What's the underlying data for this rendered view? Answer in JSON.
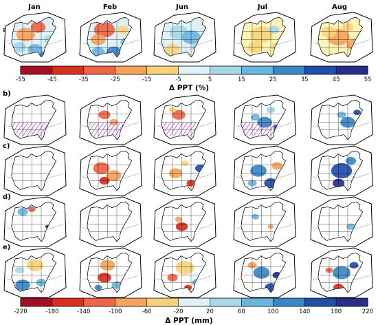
{
  "months": [
    "Jan",
    "Feb",
    "Jun",
    "Jul",
    "Aug"
  ],
  "rows": [
    "a)",
    "b)",
    "c)",
    "d)",
    "e)"
  ],
  "colorbar_pct": {
    "title": "Δ PPT (%)",
    "ticks": [
      "-55",
      "-45",
      "-35",
      "-25",
      "-15",
      "-5",
      "5",
      "15",
      "25",
      "35",
      "45",
      "55"
    ]
  },
  "colorbar_mm": {
    "title": "Δ PPT (mm)",
    "ticks": [
      "-220",
      "-180",
      "-140",
      "-100",
      "-60",
      "-20",
      "20",
      "60",
      "100",
      "140",
      "180",
      "220"
    ]
  },
  "palette": [
    "#a50f23",
    "#d7301f",
    "#ef6548",
    "#f5a25c",
    "#f8d27a",
    "#fdf4b7",
    "#dff1f7",
    "#a6d8ea",
    "#6cb6dd",
    "#3a86c6",
    "#214ea8",
    "#282c8c"
  ],
  "hatch_color": "#c040d8",
  "panels": [
    [
      {
        "land": 6,
        "blobs": [
          [
            0.35,
            0.45,
            0.25,
            3
          ],
          [
            0.55,
            0.3,
            0.2,
            2
          ],
          [
            0.25,
            0.7,
            0.18,
            7
          ],
          [
            0.5,
            0.75,
            0.2,
            8
          ],
          [
            0.75,
            0.55,
            0.18,
            7
          ],
          [
            0.65,
            0.85,
            0.12,
            9
          ]
        ],
        "hatch": false
      },
      {
        "land": 6,
        "blobs": [
          [
            0.4,
            0.35,
            0.28,
            2
          ],
          [
            0.3,
            0.55,
            0.2,
            3
          ],
          [
            0.3,
            0.8,
            0.18,
            8
          ],
          [
            0.55,
            0.8,
            0.2,
            9
          ],
          [
            0.75,
            0.6,
            0.15,
            8
          ],
          [
            0.7,
            0.35,
            0.15,
            4
          ]
        ],
        "hatch": false
      },
      {
        "land": 6,
        "blobs": [
          [
            0.4,
            0.4,
            0.25,
            7
          ],
          [
            0.6,
            0.5,
            0.25,
            8
          ],
          [
            0.3,
            0.75,
            0.2,
            4
          ],
          [
            0.7,
            0.7,
            0.15,
            7
          ]
        ],
        "hatch": false
      },
      {
        "land": 5,
        "blobs": [
          [
            0.45,
            0.45,
            0.3,
            4
          ],
          [
            0.35,
            0.7,
            0.2,
            4
          ],
          [
            0.65,
            0.35,
            0.15,
            7
          ],
          [
            0.7,
            0.7,
            0.15,
            4
          ]
        ],
        "hatch": false
      },
      {
        "land": 5,
        "blobs": [
          [
            0.45,
            0.5,
            0.3,
            3
          ],
          [
            0.3,
            0.4,
            0.2,
            4
          ],
          [
            0.7,
            0.65,
            0.2,
            3
          ],
          [
            0.6,
            0.3,
            0.15,
            4
          ]
        ],
        "hatch": false
      }
    ],
    [
      {
        "land": -1,
        "blobs": [],
        "hatch": true
      },
      {
        "land": -1,
        "blobs": [
          [
            0.4,
            0.4,
            0.16,
            2
          ],
          [
            0.55,
            0.55,
            0.12,
            3
          ]
        ],
        "hatch": true
      },
      {
        "land": -1,
        "blobs": [
          [
            0.4,
            0.4,
            0.18,
            2
          ],
          [
            0.3,
            0.3,
            0.1,
            4
          ]
        ],
        "hatch": true
      },
      {
        "land": -1,
        "blobs": [
          [
            0.5,
            0.55,
            0.2,
            9
          ],
          [
            0.35,
            0.45,
            0.12,
            8
          ],
          [
            0.6,
            0.3,
            0.12,
            7
          ],
          [
            0.7,
            0.65,
            0.1,
            10
          ]
        ],
        "hatch": true
      },
      {
        "land": -1,
        "blobs": [
          [
            0.6,
            0.55,
            0.2,
            9
          ],
          [
            0.5,
            0.4,
            0.12,
            8
          ],
          [
            0.75,
            0.35,
            0.1,
            10
          ]
        ],
        "hatch": false
      }
    ],
    [
      {
        "land": -1,
        "blobs": [],
        "hatch": false
      },
      {
        "land": -1,
        "blobs": [
          [
            0.35,
            0.45,
            0.22,
            2
          ],
          [
            0.55,
            0.6,
            0.2,
            3
          ],
          [
            0.4,
            0.7,
            0.14,
            1
          ]
        ],
        "hatch": false
      },
      {
        "land": -1,
        "blobs": [
          [
            0.35,
            0.55,
            0.18,
            3
          ],
          [
            0.75,
            0.45,
            0.14,
            10
          ],
          [
            0.6,
            0.75,
            0.12,
            1
          ],
          [
            0.5,
            0.35,
            0.1,
            4
          ]
        ],
        "hatch": false
      },
      {
        "land": -1,
        "blobs": [
          [
            0.4,
            0.5,
            0.22,
            9
          ],
          [
            0.6,
            0.75,
            0.18,
            10
          ],
          [
            0.7,
            0.4,
            0.14,
            3
          ],
          [
            0.3,
            0.75,
            0.12,
            8
          ]
        ],
        "hatch": false
      },
      {
        "land": -1,
        "blobs": [
          [
            0.5,
            0.5,
            0.28,
            10
          ],
          [
            0.65,
            0.3,
            0.14,
            9
          ],
          [
            0.45,
            0.75,
            0.16,
            11
          ],
          [
            0.75,
            0.65,
            0.12,
            9
          ]
        ],
        "hatch": false
      }
    ],
    [
      {
        "land": -1,
        "blobs": [
          [
            0.3,
            0.3,
            0.14,
            8
          ],
          [
            0.45,
            0.25,
            0.1,
            2
          ],
          [
            0.7,
            0.6,
            0.06,
            11
          ]
        ],
        "hatch": false
      },
      {
        "land": -1,
        "blobs": [],
        "hatch": false
      },
      {
        "land": -1,
        "blobs": [
          [
            0.45,
            0.6,
            0.16,
            1
          ],
          [
            0.4,
            0.45,
            0.1,
            3
          ],
          [
            0.7,
            0.75,
            0.08,
            8
          ]
        ],
        "hatch": false
      },
      {
        "land": -1,
        "blobs": [
          [
            0.35,
            0.4,
            0.1,
            8
          ],
          [
            0.6,
            0.6,
            0.08,
            3
          ]
        ],
        "hatch": false
      },
      {
        "land": -1,
        "blobs": [
          [
            0.65,
            0.6,
            0.12,
            8
          ]
        ],
        "hatch": false
      }
    ],
    [
      {
        "land": -1,
        "blobs": [
          [
            0.5,
            0.35,
            0.22,
            4
          ],
          [
            0.3,
            0.75,
            0.2,
            9
          ],
          [
            0.6,
            0.7,
            0.14,
            8
          ],
          [
            0.25,
            0.45,
            0.12,
            7
          ]
        ],
        "hatch": false
      },
      {
        "land": -1,
        "blobs": [
          [
            0.45,
            0.35,
            0.2,
            3
          ],
          [
            0.4,
            0.6,
            0.18,
            1
          ],
          [
            0.6,
            0.75,
            0.14,
            8
          ],
          [
            0.3,
            0.8,
            0.1,
            9
          ]
        ],
        "hatch": false
      },
      {
        "land": -1,
        "blobs": [
          [
            0.5,
            0.4,
            0.25,
            4
          ],
          [
            0.3,
            0.6,
            0.14,
            2
          ],
          [
            0.7,
            0.7,
            0.14,
            8
          ],
          [
            0.55,
            0.8,
            0.1,
            1
          ]
        ],
        "hatch": false
      },
      {
        "land": -1,
        "blobs": [
          [
            0.45,
            0.5,
            0.22,
            9
          ],
          [
            0.6,
            0.8,
            0.16,
            10
          ],
          [
            0.3,
            0.35,
            0.12,
            3
          ],
          [
            0.7,
            0.55,
            0.12,
            11
          ]
        ],
        "hatch": false
      },
      {
        "land": -1,
        "blobs": [
          [
            0.5,
            0.5,
            0.24,
            9
          ],
          [
            0.45,
            0.8,
            0.14,
            1
          ],
          [
            0.7,
            0.35,
            0.12,
            10
          ],
          [
            0.3,
            0.45,
            0.1,
            2
          ]
        ],
        "hatch": false
      }
    ]
  ]
}
